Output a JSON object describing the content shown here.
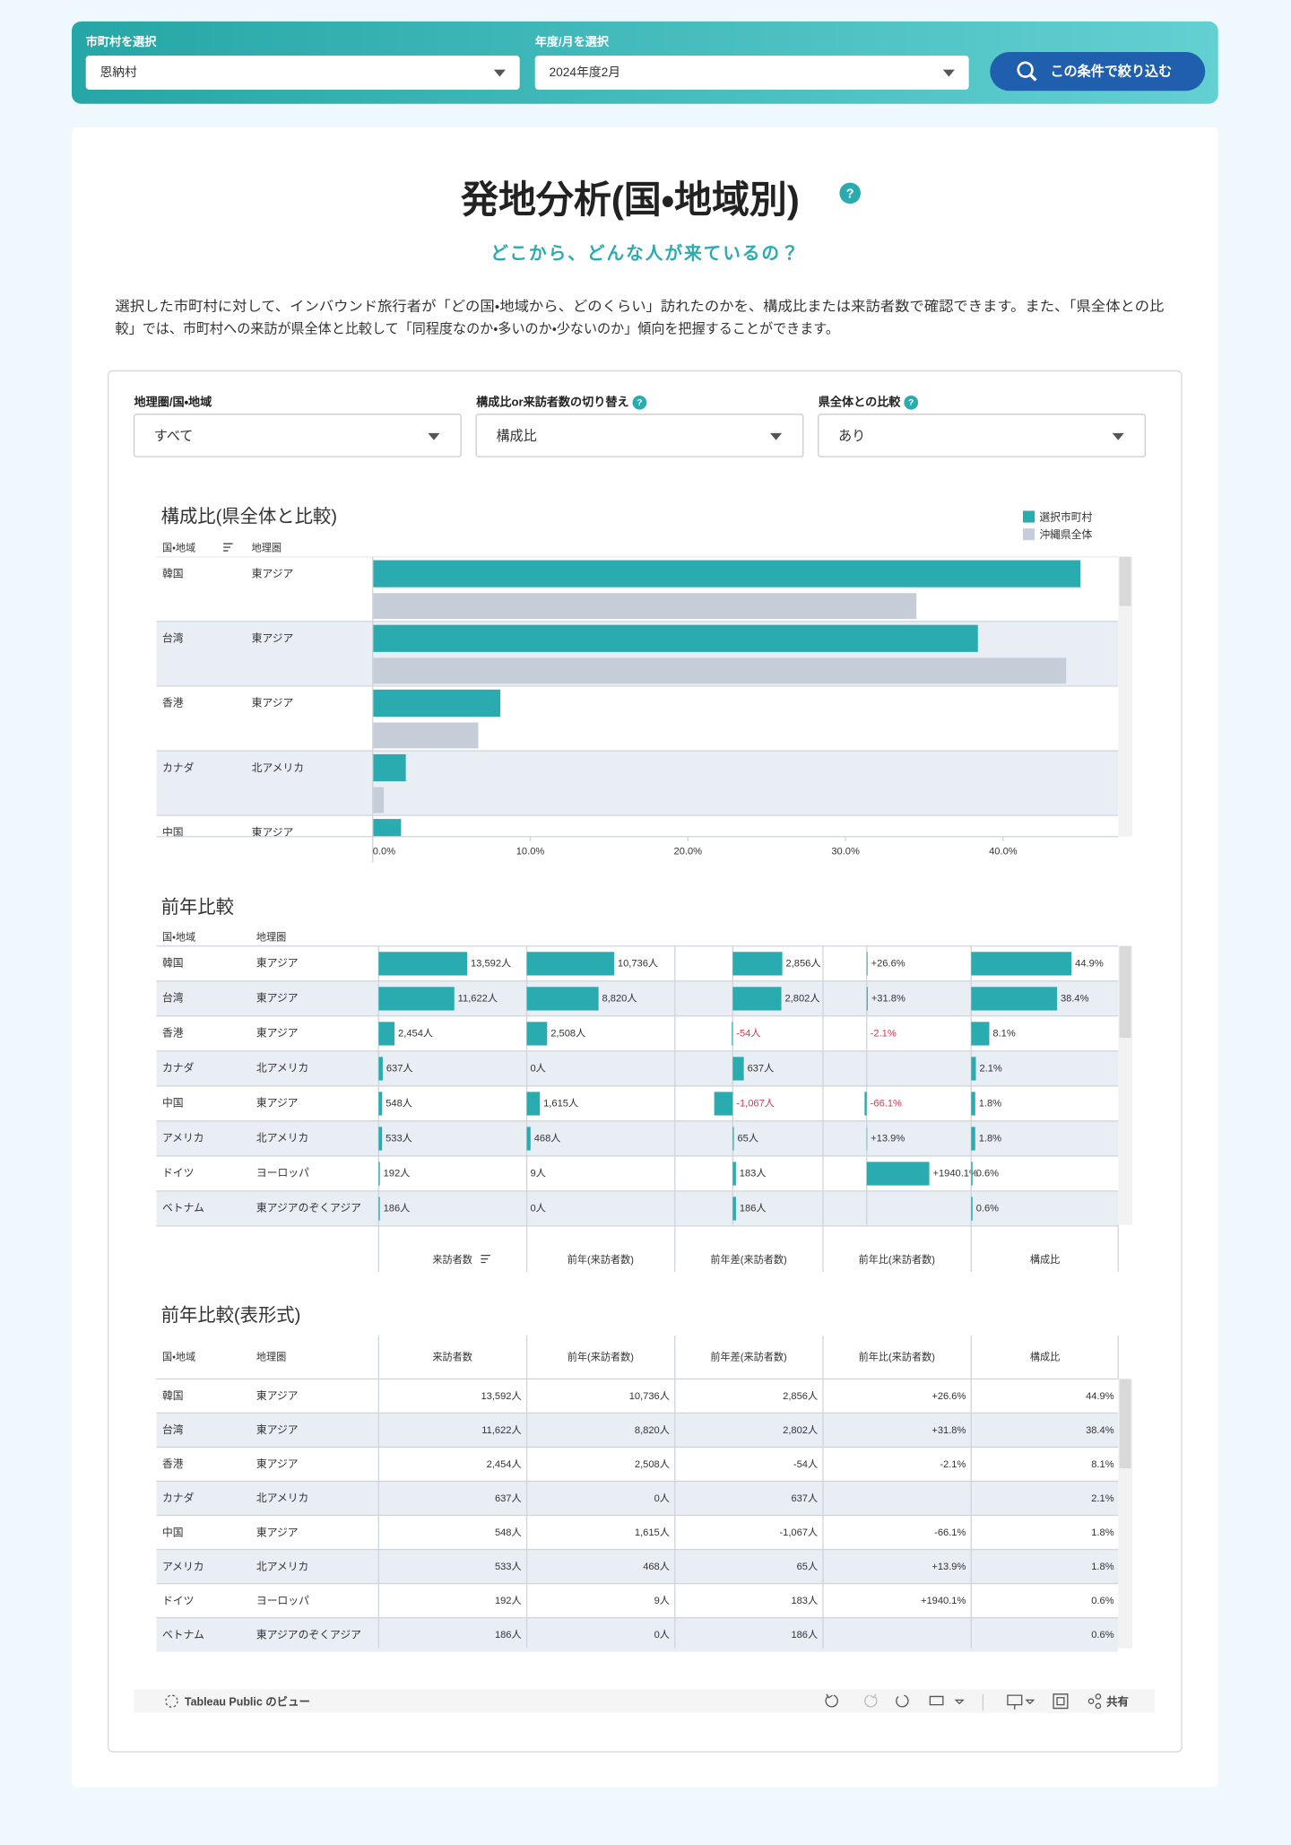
{
  "filter_bar": {
    "municipality_label": "市町村を選択",
    "municipality": "恩納村",
    "period_label": "年度/月を選択",
    "period": "2024年度2月",
    "button": "この条件で絞り込む"
  },
  "header": {
    "title": "発地分析(国・地域別)",
    "help": "?",
    "subtitle": "どこから、どんな人が来ているの？",
    "description": [
      "選択した市町村に対して、インバウンド旅行者が「どの国・地域から、どのくらい」訪れたのかを、構成比または来訪者数で確認できます。また、「県全体との比",
      "較」では、市町村への来訪が県全体と比較して「同程度なのか・多いのか・少ないのか」傾向を把握することができます。"
    ]
  },
  "filters": [
    {
      "label": "地理圏/国・地域",
      "value": "すべて"
    },
    {
      "label": "構成比or来訪者数の切り替え",
      "value": "構成比",
      "help": "?"
    },
    {
      "label": "県全体との比較",
      "value": "あり",
      "help": "?"
    }
  ],
  "chart_data": [
    {
      "type": "bar",
      "title": "構成比(県全体と比較)",
      "row_headers": [
        "国・地域",
        "地理圏"
      ],
      "categories": [
        "韓国",
        "台湾",
        "香港",
        "カナダ",
        "中国"
      ],
      "regions": [
        "東アジア",
        "東アジア",
        "東アジア",
        "北アメリカ",
        "東アジア"
      ],
      "series": [
        {
          "name": "選択市町村",
          "color": "#2aabb0",
          "values": [
            44.9,
            38.4,
            8.1,
            2.1,
            1.8
          ]
        },
        {
          "name": "沖縄県全体",
          "color": "#c5ced8",
          "values": [
            34.5,
            44.0,
            6.7,
            0.7,
            null
          ]
        }
      ],
      "xlim": [
        0,
        47.3
      ],
      "xticks": [
        {
          "value": 0,
          "label": "0.0%"
        },
        {
          "value": 10,
          "label": "10.0%"
        },
        {
          "value": 20,
          "label": "20.0%"
        },
        {
          "value": 30,
          "label": "30.0%"
        },
        {
          "value": 40,
          "label": "40.0%"
        }
      ]
    },
    {
      "type": "bar-table",
      "title": "前年比較",
      "table_title": "前年比較(表形式)",
      "row_headers": [
        "国・地域",
        "地理圏"
      ],
      "categories": [
        "韓国",
        "台湾",
        "香港",
        "カナダ",
        "中国",
        "アメリカ",
        "ドイツ",
        "ベトナム"
      ],
      "regions": [
        "東アジア",
        "東アジア",
        "東アジア",
        "北アメリカ",
        "東アジア",
        "北アメリカ",
        "ヨーロッパ",
        "東アジアのぞくアジア"
      ],
      "color": "#2aabb0",
      "negative_label_color": "#e0364f",
      "columns": [
        {
          "name": "来訪者数",
          "xlim": [
            0,
            22650
          ],
          "values": [
            13592,
            11622,
            2454,
            637,
            548,
            533,
            192,
            186
          ],
          "value_labels": [
            "13,592人",
            "11,622人",
            "2,454人",
            "637人",
            "548人",
            "533人",
            "192人",
            "186人"
          ]
        },
        {
          "name": "前年(来訪者数)",
          "xlim": [
            0,
            18135
          ],
          "values": [
            10736,
            8820,
            2508,
            0,
            1615,
            468,
            9,
            0
          ],
          "value_labels": [
            "10,736人",
            "8,820人",
            "2,508人",
            "0人",
            "1,615人",
            "468人",
            "9人",
            "0人"
          ]
        },
        {
          "name": "前年差(来訪者数)",
          "xlim": [
            -3332,
            5168
          ],
          "values": [
            2856,
            2802,
            -54,
            637,
            -1067,
            65,
            183,
            186
          ],
          "value_labels": [
            "2,856人",
            "2,802人",
            "-54人",
            "637人",
            "-1,067人",
            "65人",
            "183人",
            "186人"
          ]
        },
        {
          "name": "前年比(来訪者数)",
          "xlim": [
            -1354,
            3221
          ],
          "values": [
            26.6,
            31.8,
            -2.1,
            null,
            -66.1,
            13.9,
            1940.1,
            null
          ],
          "value_labels": [
            "+26.6%",
            "+31.8%",
            "-2.1%",
            null,
            "-66.1%",
            "+13.9%",
            "+1940.1%",
            null
          ]
        },
        {
          "name": "構成比",
          "xlim": [
            0,
            66.0
          ],
          "values": [
            44.9,
            38.4,
            8.1,
            2.1,
            1.8,
            1.8,
            0.6,
            0.6
          ],
          "value_labels": [
            "44.9%",
            "38.4%",
            "8.1%",
            "2.1%",
            "1.8%",
            "1.8%",
            "0.6%",
            "0.6%"
          ]
        }
      ]
    }
  ],
  "toolbar": {
    "brand": "Tableau Public のビュー",
    "share": "共有"
  }
}
